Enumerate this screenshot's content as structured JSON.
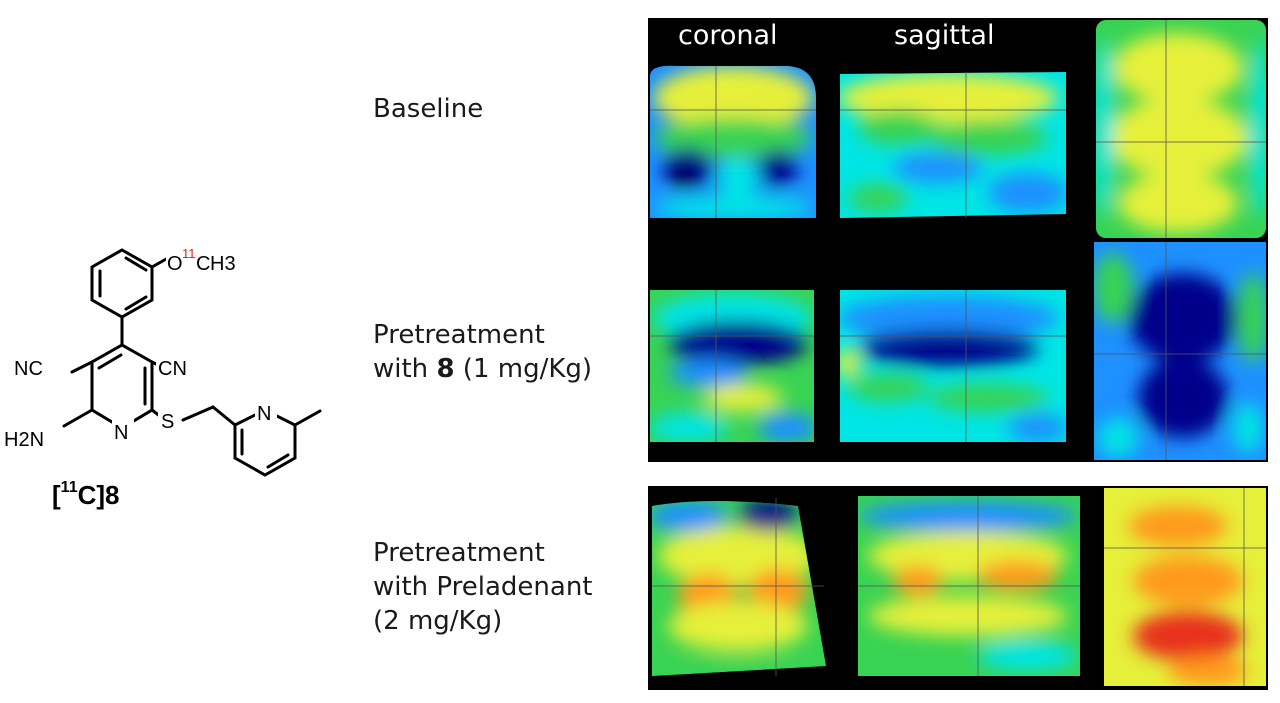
{
  "compound": {
    "label_prefix": "[",
    "label_isotope": "11",
    "label_rest": "C]8",
    "methoxy_o": "O",
    "methoxy_isotope": "11",
    "methoxy_c": "C",
    "methoxy_h3": "H3",
    "cn_left": "NC",
    "cn_right": "CN",
    "amino": "H2N",
    "ring_n": "N",
    "sulfur": "S",
    "pyridine_n": "N",
    "isotope_color": "#e02020"
  },
  "columns": {
    "coronal": "coronal",
    "sagittal": "sagittal"
  },
  "rows": {
    "baseline": "Baseline",
    "pretreatment_8_line1": "Pretreatment",
    "pretreatment_8_line2_a": "with ",
    "pretreatment_8_line2_bold": "8",
    "pretreatment_8_line2_b": " (1 mg/Kg)",
    "preladenant_line1": "Pretreatment",
    "preladenant_line2": "with Preladenant",
    "preladenant_line3": "(2 mg/Kg)"
  },
  "colormap": [
    "#00008b",
    "#1e90ff",
    "#00e5e5",
    "#39d353",
    "#e6f03a",
    "#ff9a1f",
    "#e8321f"
  ]
}
